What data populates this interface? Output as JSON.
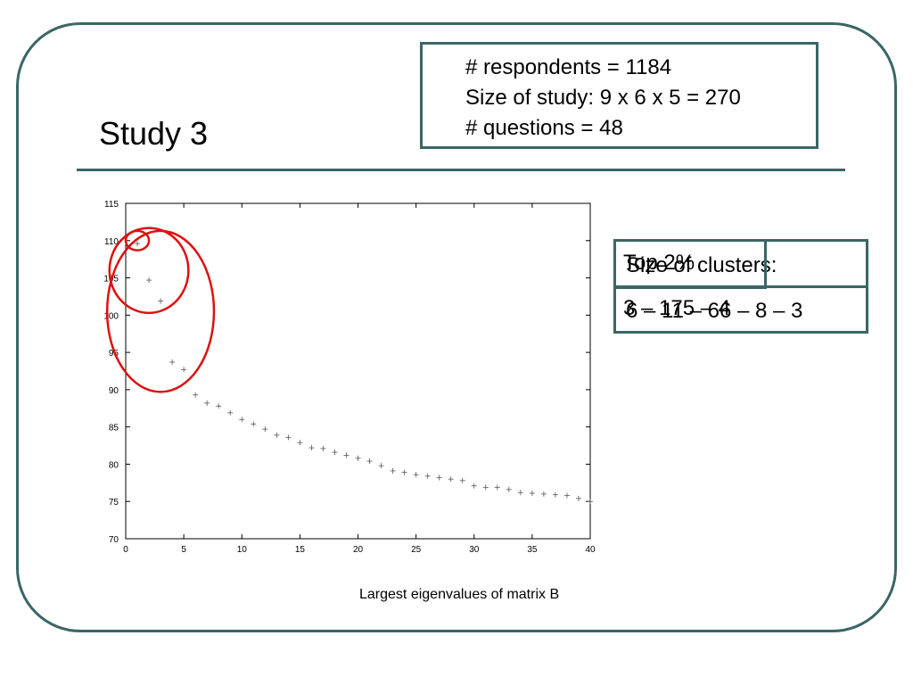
{
  "slide": {
    "title": "Study 3",
    "stats": [
      "# respondents = 1184",
      "Size of study: 9 x 6 x 5 = 270",
      "# questions = 48"
    ],
    "clusters": {
      "heading": "Size of clusters:",
      "values": "6 – 11 – 66 – 8 – 3"
    },
    "overlay": {
      "heading": "Top 2%",
      "values": "3 – 175 – 4"
    },
    "caption": "Largest eigenvalues of matrix B",
    "colors": {
      "frame": "#3a6666",
      "circle": "#dd1111",
      "marker": "#555555"
    }
  },
  "chart_data": {
    "type": "scatter",
    "title": "",
    "xlabel": "",
    "ylabel": "",
    "xlim": [
      0,
      40
    ],
    "ylim": [
      70,
      115
    ],
    "x_ticks": [
      0,
      5,
      10,
      15,
      20,
      25,
      30,
      35,
      40
    ],
    "y_ticks": [
      70,
      75,
      80,
      85,
      90,
      95,
      100,
      105,
      110,
      115
    ],
    "grid": false,
    "marker": "+",
    "series": [
      {
        "x": [
          1,
          2,
          3,
          4,
          5,
          6,
          7,
          8,
          9,
          10,
          11,
          12,
          13,
          14,
          15,
          16,
          17,
          18,
          19,
          20,
          21,
          22,
          23,
          24,
          25,
          26,
          27,
          28,
          29,
          30,
          31,
          32,
          33,
          34,
          35,
          36,
          37,
          38,
          39,
          40
        ],
        "y": [
          109.6,
          104.7,
          101.9,
          93.7,
          92.7,
          89.3,
          88.2,
          87.8,
          86.9,
          86.0,
          85.4,
          84.7,
          83.9,
          83.6,
          82.9,
          82.2,
          82.1,
          81.6,
          81.2,
          80.8,
          80.4,
          79.8,
          79.1,
          78.9,
          78.6,
          78.4,
          78.2,
          78.0,
          77.8,
          77.1,
          76.9,
          76.9,
          76.6,
          76.2,
          76.1,
          76.0,
          75.9,
          75.8,
          75.4,
          75.0
        ]
      }
    ],
    "annotations": [
      {
        "shape": "ellipse",
        "cx": 1,
        "cy": 110,
        "rx": 1,
        "ry": 1.3
      },
      {
        "shape": "ellipse",
        "cx": 2,
        "cy": 106,
        "rx": 3.4,
        "ry": 5.7
      },
      {
        "shape": "ellipse",
        "cx": 3,
        "cy": 100.5,
        "rx": 4.6,
        "ry": 10.8
      }
    ]
  }
}
